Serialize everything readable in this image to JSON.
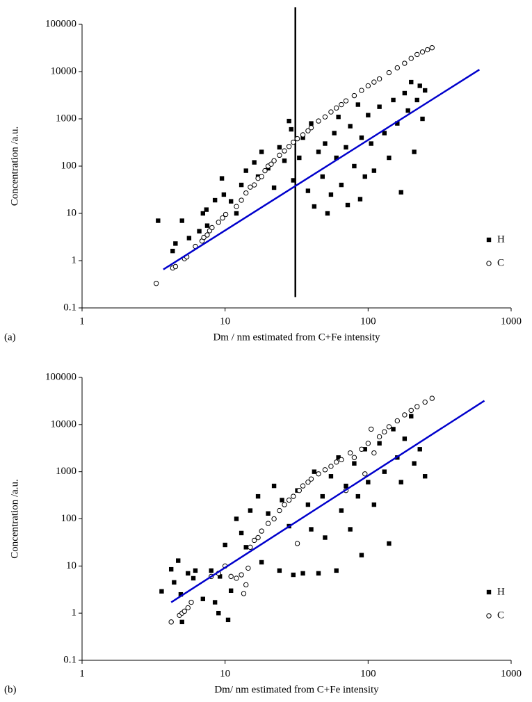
{
  "chart_data": [
    {
      "type": "scatter",
      "panel_label": "(a)",
      "xlabel": "Dm / nm estimated from C+Fe intensity",
      "ylabel": "Concentration /a.u.",
      "xlim": [
        1,
        1000
      ],
      "ylim": [
        0.1,
        100000
      ],
      "xticks": [
        1,
        10,
        100,
        1000
      ],
      "yticks": [
        0.1,
        1,
        10,
        100,
        1000,
        10000,
        100000
      ],
      "log_x": true,
      "log_y": true,
      "legend": "lower right",
      "series": [
        {
          "name": "H",
          "marker": "square",
          "color": "#000000",
          "x": [
            3.4,
            4.3,
            4.5,
            5.0,
            5.6,
            6.6,
            7.0,
            7.4,
            7.5,
            8.5,
            9.5,
            9.8,
            11,
            12,
            13,
            14,
            16,
            17,
            18,
            20,
            22,
            24,
            26,
            28,
            29,
            30,
            33,
            35,
            38,
            40,
            42,
            45,
            48,
            50,
            52,
            55,
            58,
            60,
            62,
            65,
            70,
            72,
            75,
            80,
            85,
            88,
            90,
            95,
            100,
            105,
            110,
            120,
            130,
            140,
            150,
            160,
            170,
            180,
            190,
            200,
            210,
            220,
            230,
            240,
            250
          ],
          "values": [
            7,
            1.6,
            2.3,
            7,
            3,
            4.2,
            10,
            12,
            5.5,
            19,
            55,
            25,
            18,
            10,
            40,
            80,
            120,
            60,
            200,
            90,
            35,
            250,
            130,
            900,
            600,
            50,
            150,
            400,
            30,
            800,
            14,
            200,
            60,
            300,
            10,
            25,
            500,
            150,
            1100,
            40,
            250,
            15,
            700,
            100,
            2000,
            20,
            400,
            60,
            1200,
            300,
            80,
            1800,
            500,
            150,
            2500,
            800,
            28,
            3500,
            1500,
            6000,
            200,
            2500,
            5000,
            1000,
            4000
          ]
        },
        {
          "name": "C",
          "marker": "circle",
          "color": "#000000",
          "x": [
            3.3,
            4.3,
            4.5,
            5.2,
            5.4,
            6.2,
            6.9,
            7.1,
            7.5,
            7.8,
            8.1,
            9.0,
            9.6,
            10.1,
            12,
            13,
            14,
            15,
            16,
            17,
            18,
            19,
            20,
            21,
            22,
            24,
            26,
            28,
            30,
            32,
            35,
            38,
            40,
            45,
            50,
            55,
            60,
            65,
            70,
            80,
            90,
            100,
            110,
            120,
            140,
            160,
            180,
            200,
            220,
            240,
            260,
            280
          ],
          "values": [
            0.33,
            0.7,
            0.75,
            1.1,
            1.2,
            2,
            2.6,
            3.1,
            3.5,
            4.3,
            5,
            6.5,
            8,
            9.5,
            14,
            19,
            27,
            36,
            40,
            55,
            60,
            80,
            100,
            110,
            130,
            170,
            210,
            260,
            320,
            380,
            460,
            560,
            650,
            900,
            1100,
            1400,
            1700,
            2000,
            2400,
            3100,
            4000,
            5000,
            6000,
            7000,
            9500,
            12000,
            15000,
            19000,
            23000,
            26000,
            29000,
            32000
          ]
        }
      ],
      "fit_line": {
        "color": "#0000cc",
        "x": [
          3.7,
          600
        ],
        "values": [
          0.65,
          11000
        ]
      },
      "vline": {
        "color": "#000000",
        "x": 31,
        "values": [
          0.17,
          230000
        ]
      }
    },
    {
      "type": "scatter",
      "panel_label": "(b)",
      "xlabel": "Dm/ nm estimated from C+Fe intensity",
      "ylabel": "Concentration /a.u.",
      "xlim": [
        1,
        1000
      ],
      "ylim": [
        0.1,
        100000
      ],
      "xticks": [
        1,
        10,
        100,
        1000
      ],
      "yticks": [
        0.1,
        1,
        10,
        100,
        1000,
        10000,
        100000
      ],
      "log_x": true,
      "log_y": true,
      "legend": "lower right",
      "series": [
        {
          "name": "H",
          "marker": "square",
          "color": "#000000",
          "x": [
            3.6,
            4.2,
            4.4,
            4.7,
            4.9,
            5.0,
            5.5,
            6,
            6.2,
            7,
            8,
            8.5,
            9,
            9.2,
            10,
            10.5,
            11,
            12,
            13,
            14,
            15,
            17,
            18,
            20,
            22,
            24,
            25,
            28,
            30,
            32,
            35,
            38,
            40,
            42,
            45,
            48,
            50,
            55,
            60,
            62,
            65,
            70,
            75,
            80,
            85,
            90,
            95,
            100,
            110,
            120,
            130,
            140,
            150,
            160,
            170,
            180,
            200,
            210,
            230,
            250
          ],
          "values": [
            2.9,
            8.5,
            4.5,
            13,
            2.5,
            0.65,
            7,
            5.5,
            8,
            2,
            8,
            1.7,
            1,
            6,
            28,
            0.72,
            3,
            100,
            50,
            25,
            150,
            300,
            12,
            130,
            500,
            8,
            250,
            70,
            6.5,
            400,
            7,
            200,
            60,
            1000,
            7,
            300,
            40,
            800,
            8,
            2000,
            150,
            500,
            60,
            1500,
            300,
            17,
            3000,
            600,
            200,
            4000,
            1000,
            30,
            8000,
            2000,
            600,
            5000,
            15000,
            1500,
            3000,
            800
          ]
        },
        {
          "name": "C",
          "marker": "circle",
          "color": "#000000",
          "x": [
            4.2,
            4.8,
            5,
            5.2,
            5.5,
            5.8,
            8,
            9,
            10,
            11,
            12,
            13,
            13.5,
            14,
            14.5,
            15,
            16,
            17,
            18,
            20,
            22,
            24,
            26,
            28,
            30,
            32,
            33,
            35,
            38,
            40,
            45,
            50,
            55,
            60,
            65,
            70,
            75,
            80,
            90,
            95,
            100,
            105,
            110,
            120,
            130,
            140,
            160,
            180,
            200,
            220,
            250,
            280
          ],
          "values": [
            0.65,
            0.9,
            1,
            1.1,
            1.3,
            1.7,
            6,
            7,
            10,
            6,
            5.5,
            6.5,
            2.6,
            4,
            9,
            25,
            35,
            40,
            55,
            80,
            100,
            150,
            200,
            250,
            300,
            30,
            400,
            500,
            600,
            700,
            900,
            1100,
            1300,
            1600,
            1800,
            400,
            2500,
            2000,
            3000,
            900,
            4000,
            8000,
            2500,
            5500,
            7000,
            9000,
            12000,
            16000,
            20000,
            24000,
            30000,
            36000
          ]
        }
      ],
      "fit_line": {
        "color": "#0000cc",
        "x": [
          4.2,
          650
        ],
        "values": [
          1.7,
          32000
        ]
      }
    }
  ]
}
